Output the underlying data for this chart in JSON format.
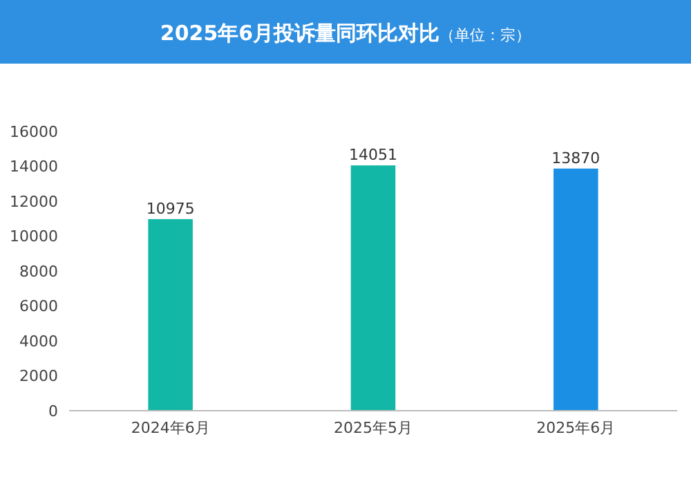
{
  "chart_data": {
    "type": "bar",
    "title": "2025年6月投诉量同环比对比",
    "subtitle": "（单位：宗）",
    "categories": [
      "2024年6月",
      "2025年5月",
      "2025年6月"
    ],
    "values": [
      10975,
      14051,
      13870
    ],
    "colors": [
      "#13b7a6",
      "#13b7a6",
      "#1a8fe3"
    ],
    "ylim": [
      0,
      16000
    ],
    "yticks": [
      0,
      2000,
      4000,
      6000,
      8000,
      10000,
      12000,
      14000,
      16000
    ],
    "grid": false,
    "data_labels": true
  }
}
